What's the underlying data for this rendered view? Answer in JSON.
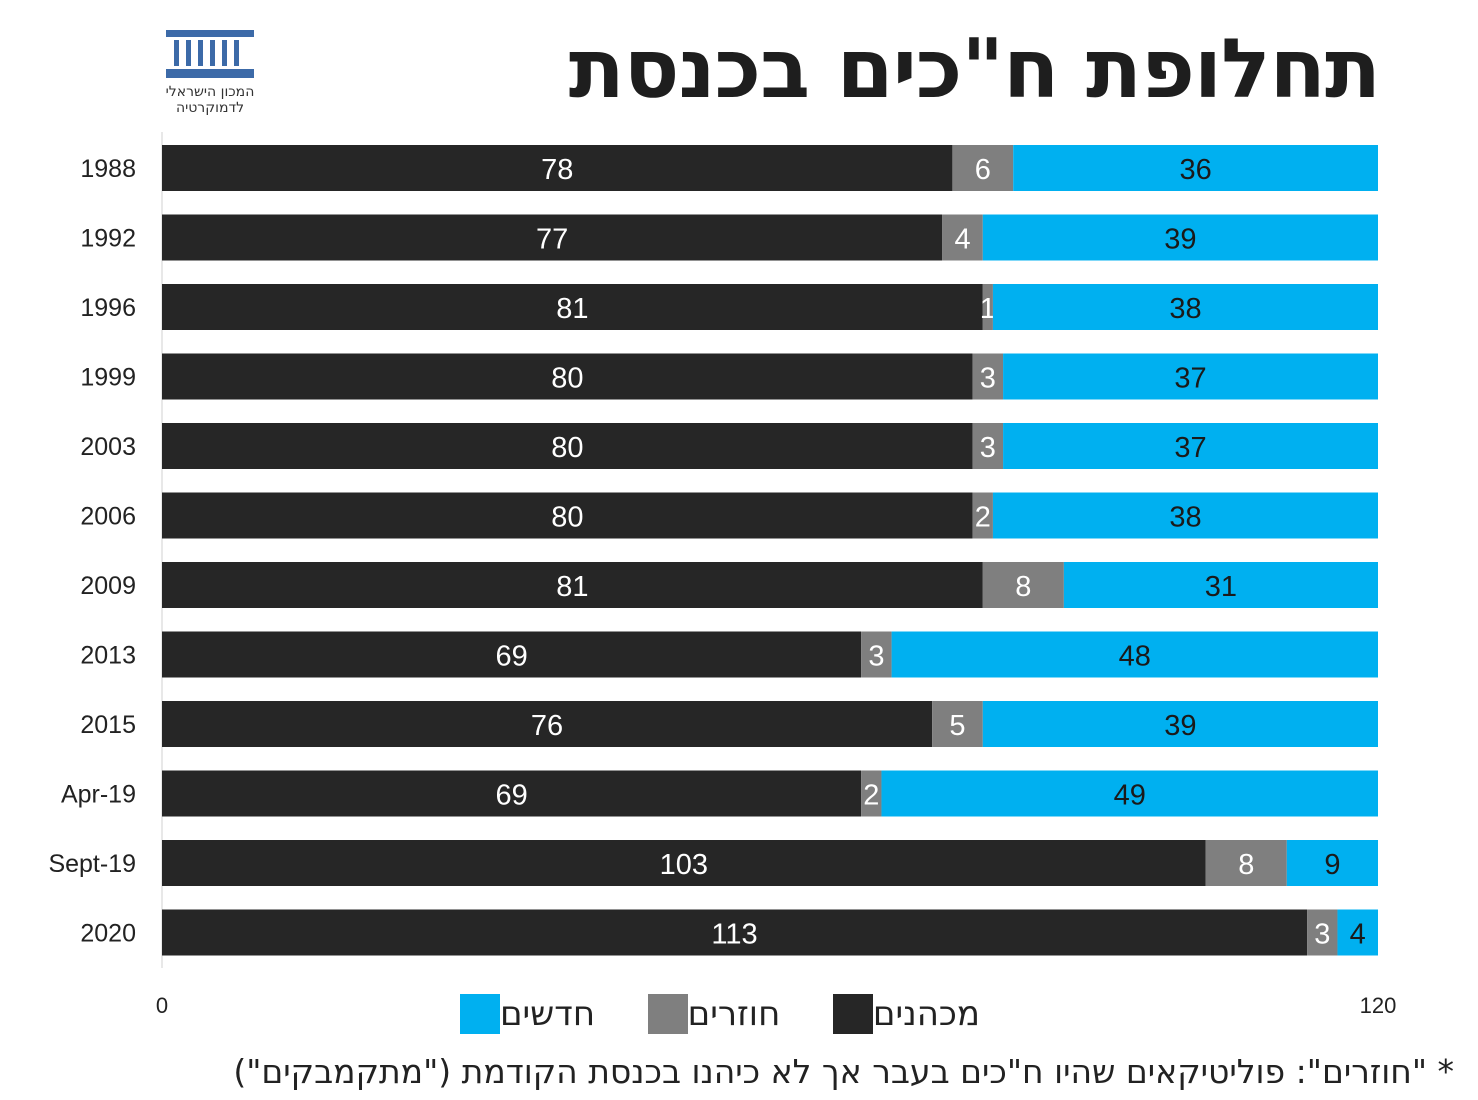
{
  "header": {
    "title": "תחלופת ח\"כים בכנסת",
    "logo_text_line1": "המכון הישראלי",
    "logo_text_line2": "לדמוקרטיה"
  },
  "colors": {
    "incumbent": "#262626",
    "returning": "#7f7f7f",
    "new": "#00b0f0",
    "label_light": "#ffffff",
    "label_dark": "#1a1a1a",
    "logo": "#3c6aa8"
  },
  "chart_data": {
    "type": "bar",
    "orientation": "horizontal",
    "stacked": true,
    "categories": [
      "1988",
      "1992",
      "1996",
      "1999",
      "2003",
      "2006",
      "2009",
      "2013",
      "2015",
      "Apr-19",
      "Sept-19",
      "2020"
    ],
    "series": [
      {
        "name": "מכהנים",
        "values": [
          78,
          77,
          81,
          80,
          80,
          80,
          81,
          69,
          76,
          69,
          103,
          113
        ]
      },
      {
        "name": "חוזרים",
        "values": [
          6,
          4,
          1,
          3,
          3,
          2,
          8,
          3,
          5,
          2,
          8,
          3
        ]
      },
      {
        "name": "חדשים",
        "values": [
          36,
          39,
          38,
          37,
          37,
          38,
          31,
          48,
          39,
          49,
          9,
          4
        ]
      }
    ],
    "xlim": [
      0,
      120
    ],
    "x_ticks": [
      "0",
      "120"
    ],
    "legend_position": "bottom",
    "grid": false
  },
  "legend": [
    {
      "label": "מכהנים"
    },
    {
      "label": "חוזרים"
    },
    {
      "label": "חדשים"
    }
  ],
  "footnote": "* \"חוזרים\": פוליטיקאים שהיו ח\"כים בעבר אך לא כיהנו בכנסת הקודמת (\"מתקמבקים\")"
}
